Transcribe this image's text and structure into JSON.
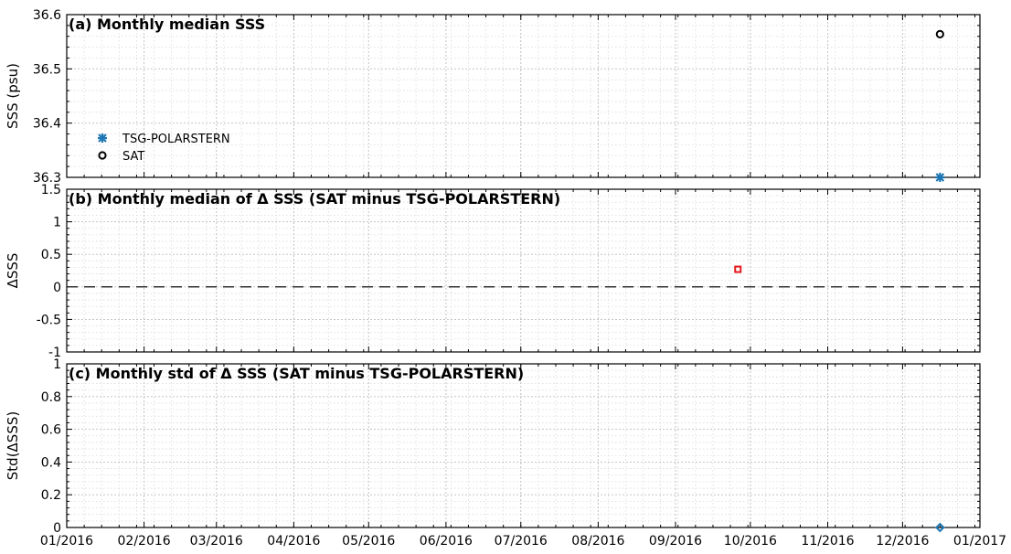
{
  "chart_data": [
    {
      "type": "scatter",
      "title": "(a) Monthly median SSS",
      "xlabel": "",
      "ylabel": "SSS (psu)",
      "ylim": [
        36.3,
        36.6
      ],
      "yticks": [
        "36.3",
        "36.4",
        "36.5",
        "36.6"
      ],
      "grid": true,
      "legend": "left",
      "series": [
        {
          "name": "TSG-POLARSTERN",
          "marker": "asterisk",
          "color": "#1f77b4",
          "points": [
            [
              "2016-12-16",
              36.3
            ]
          ]
        },
        {
          "name": "SAT",
          "marker": "circle",
          "color": "#000000",
          "points": [
            [
              "2016-12-16",
              36.564
            ]
          ]
        }
      ]
    },
    {
      "type": "scatter",
      "title": "(b) Monthly median of Δ SSS (SAT minus TSG-POLARSTERN)",
      "xlabel": "",
      "ylabel": "ΔSSS",
      "ylim": [
        -1,
        1.5
      ],
      "yticks": [
        "-1",
        "-0.5",
        "0",
        "0.5",
        "1",
        "1.5"
      ],
      "grid": true,
      "reference_line": {
        "y": 0,
        "style": "dashed"
      },
      "series": [
        {
          "marker": "square",
          "color": "#e41a1c",
          "points": [
            [
              "2016-09-26",
              0.27
            ]
          ]
        }
      ]
    },
    {
      "type": "scatter",
      "title": "(c) Monthly std of Δ SSS (SAT minus TSG-POLARSTERN)",
      "xlabel": "",
      "ylabel": "Std(ΔSSS)",
      "ylim": [
        0,
        1
      ],
      "yticks": [
        "0",
        "0.2",
        "0.4",
        "0.6",
        "0.8",
        "1"
      ],
      "grid": true,
      "series": [
        {
          "marker": "diamond",
          "color": "#1f77b4",
          "points": [
            [
              "2016-12-16",
              0.0
            ]
          ]
        }
      ]
    }
  ],
  "x_axis": {
    "range": [
      "2016-01-01",
      "2017-01-01"
    ],
    "ticks": [
      {
        "date": "2016-01-01",
        "label": "01/2016"
      },
      {
        "date": "2016-02-01",
        "label": "02/2016"
      },
      {
        "date": "2016-03-01",
        "label": "03/2016"
      },
      {
        "date": "2016-04-01",
        "label": "04/2016"
      },
      {
        "date": "2016-05-01",
        "label": "05/2016"
      },
      {
        "date": "2016-06-01",
        "label": "06/2016"
      },
      {
        "date": "2016-07-01",
        "label": "07/2016"
      },
      {
        "date": "2016-08-01",
        "label": "08/2016"
      },
      {
        "date": "2016-09-01",
        "label": "09/2016"
      },
      {
        "date": "2016-10-01",
        "label": "10/2016"
      },
      {
        "date": "2016-11-01",
        "label": "11/2016"
      },
      {
        "date": "2016-12-01",
        "label": "12/2016"
      },
      {
        "date": "2017-01-01",
        "label": "01/2017"
      }
    ]
  }
}
